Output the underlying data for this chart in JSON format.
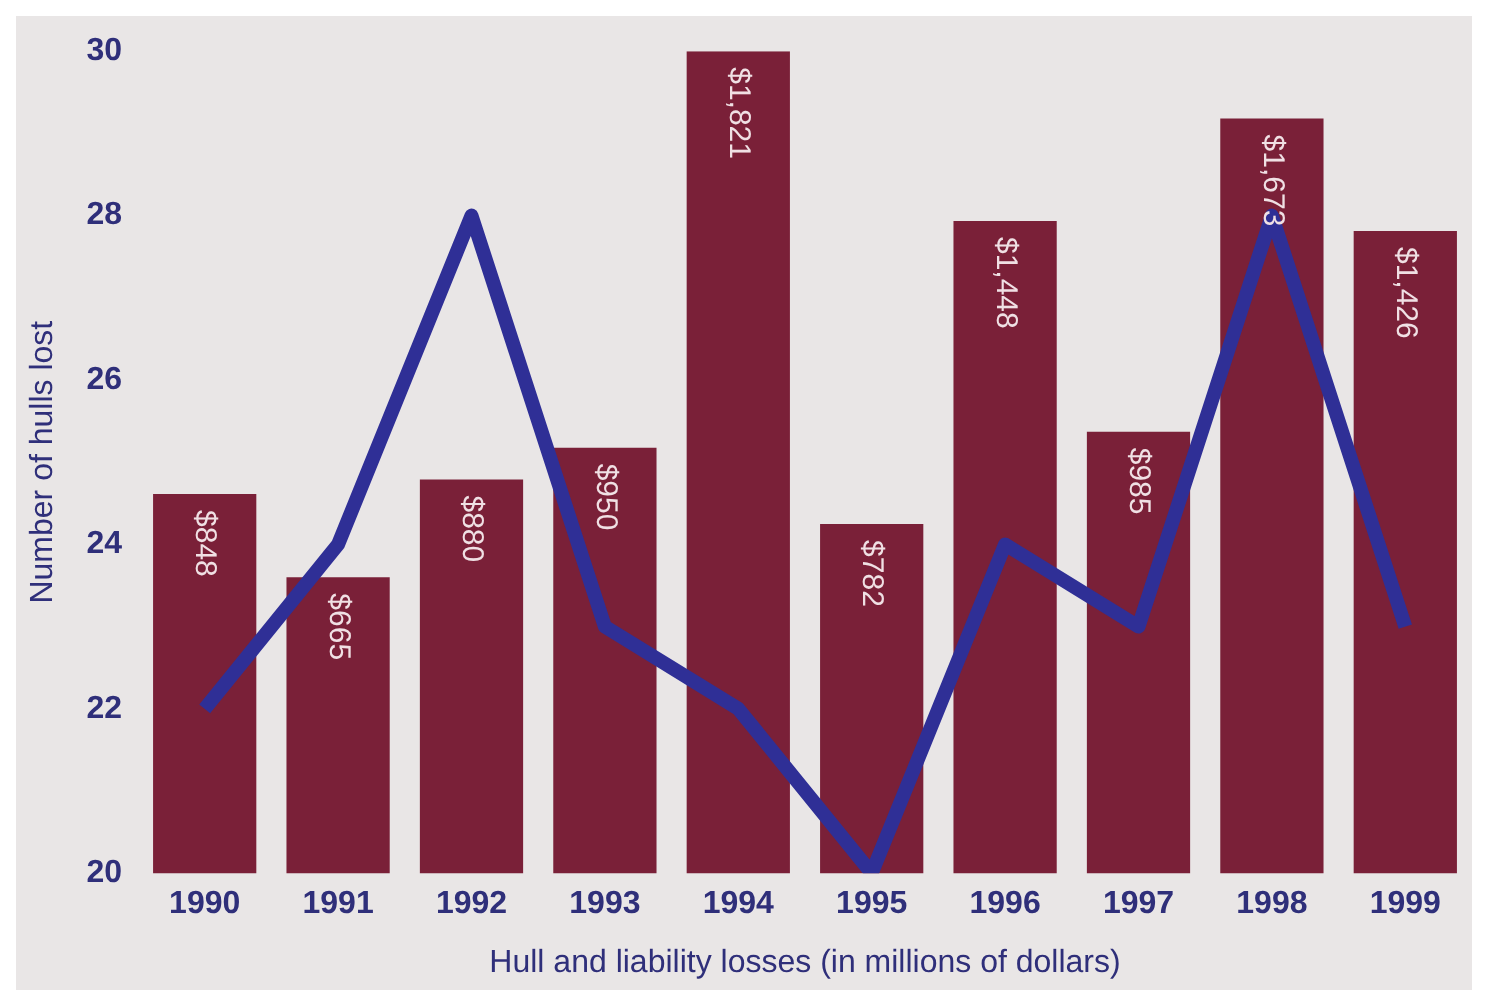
{
  "chart_data": {
    "type": "bar",
    "xlabel": "Hull and liability losses (in millions of dollars)",
    "ylabel": "Number of hulls lost",
    "categories": [
      "1990",
      "1991",
      "1992",
      "1993",
      "1994",
      "1995",
      "1996",
      "1997",
      "1998",
      "1999"
    ],
    "series": [
      {
        "axis": "y2",
        "color": "#7a2038",
        "values": [
          848,
          665,
          880,
          950,
          1821,
          782,
          1448,
          985,
          1673,
          1426
        ],
        "value_labels": [
          "$848",
          "$665",
          "$880",
          "$950",
          "$1,821",
          "$782",
          "$1,448",
          "$985",
          "$1,673",
          "$1,426"
        ]
      },
      {
        "type": "line",
        "color": "#2f2f96",
        "values": [
          22,
          24,
          28,
          23,
          22,
          20,
          24,
          23,
          28,
          23
        ]
      }
    ],
    "ylim": [
      20,
      30
    ],
    "yticks": [
      20,
      22,
      24,
      26,
      28,
      30
    ],
    "y2lim": [
      15,
      1821
    ],
    "grid": false,
    "legend": false,
    "marker": "none"
  }
}
